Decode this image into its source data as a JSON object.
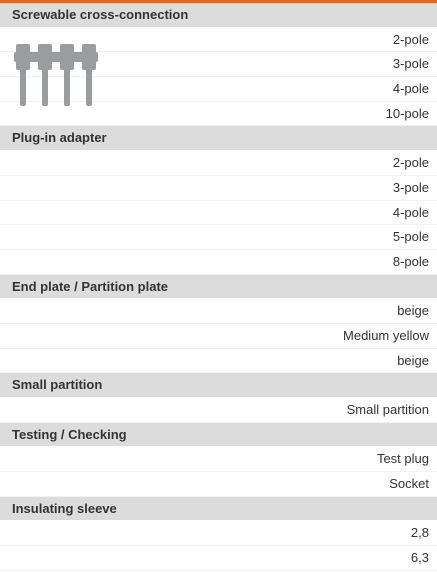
{
  "sections": [
    {
      "title": "Screwable cross-connection",
      "items": [
        "2-pole",
        "3-pole",
        "4-pole",
        "10-pole"
      ]
    },
    {
      "title": "Plug-in adapter",
      "items": [
        "2-pole",
        "3-pole",
        "4-pole",
        "5-pole",
        "8-pole"
      ]
    },
    {
      "title": "End plate / Partition plate",
      "items": [
        "beige",
        "Medium yellow",
        "beige"
      ]
    },
    {
      "title": "Small partition",
      "items": [
        "Small partition"
      ]
    },
    {
      "title": "Testing / Checking",
      "items": [
        "Test plug",
        "Socket"
      ]
    },
    {
      "title": "Insulating sleeve",
      "items": [
        "2,8",
        "6,3"
      ]
    }
  ]
}
